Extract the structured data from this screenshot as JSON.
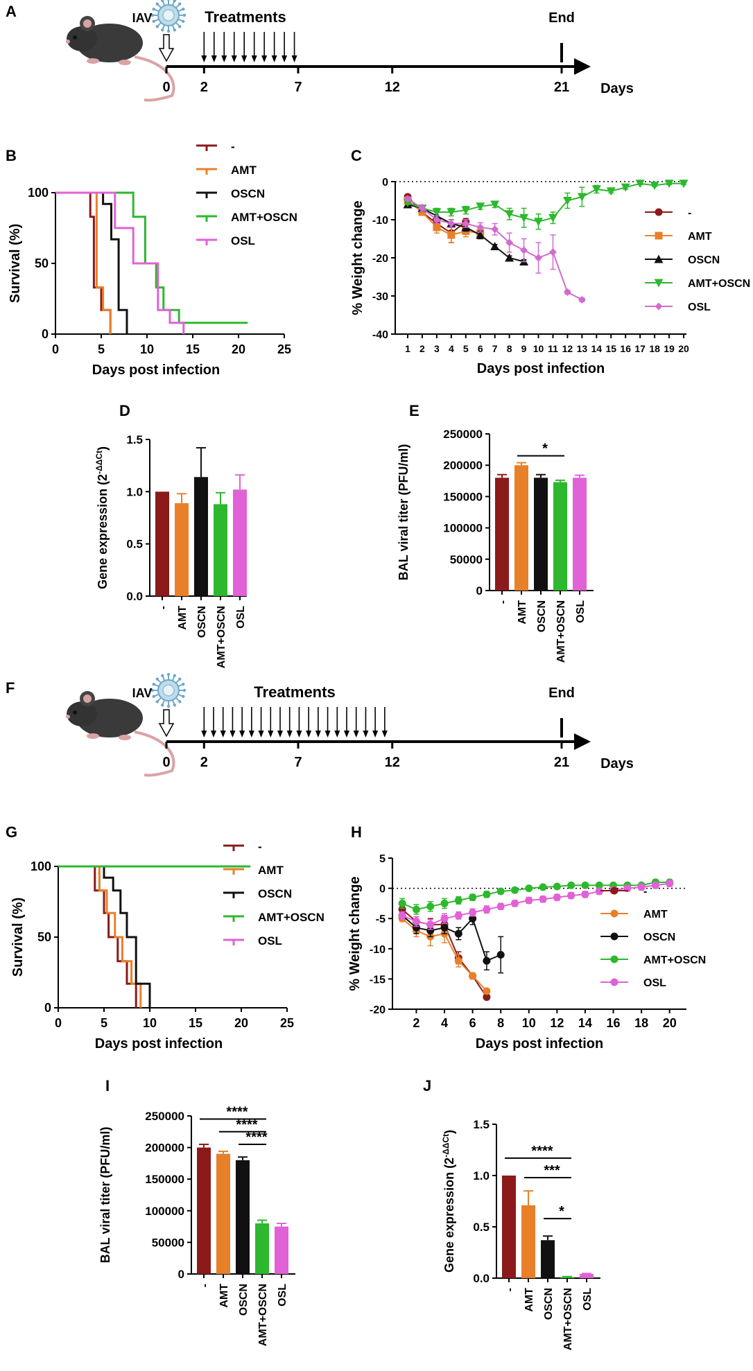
{
  "colors": {
    "untreated": "#8B1A1A",
    "amt": "#E8802A",
    "oscn": "#111111",
    "amt_oscn": "#2DB82D",
    "osl": "#E062D6",
    "osl_line": "#D36AD0"
  },
  "legend": [
    "-",
    "AMT",
    "OSCN",
    "AMT+OSCN",
    "OSL"
  ],
  "timelines": [
    {
      "panel": "A",
      "virus_label": "IAV",
      "treatments_label": "Treatments",
      "end_label": "End",
      "axis_label": "Days",
      "ticks": [
        "0",
        "2",
        "7",
        "12",
        "21"
      ],
      "tick_days": [
        0,
        2,
        7,
        12,
        21
      ],
      "arrow_count": 10,
      "arrow_span_days": [
        2,
        6.8
      ]
    },
    {
      "panel": "F",
      "virus_label": "IAV",
      "treatments_label": "Treatments",
      "end_label": "End",
      "axis_label": "Days",
      "ticks": [
        "0",
        "2",
        "7",
        "12",
        "21"
      ],
      "tick_days": [
        0,
        2,
        7,
        12,
        21
      ],
      "arrow_count": 20,
      "arrow_span_days": [
        2,
        11.6
      ]
    }
  ],
  "chart_data": [
    {
      "panel": "B",
      "type": "line",
      "title": "",
      "xlabel": "Days post infection",
      "ylabel": "Survival (%)",
      "xlim": [
        0,
        25
      ],
      "ylim": [
        0,
        100
      ],
      "xticks": [
        "0",
        "5",
        "10",
        "15",
        "20",
        "25"
      ],
      "yticks": [
        "0",
        "50",
        "100"
      ],
      "series": [
        {
          "name": "-",
          "steps": [
            [
              0,
              100
            ],
            [
              3.8,
              100
            ],
            [
              3.8,
              83
            ],
            [
              4.2,
              83
            ],
            [
              4.2,
              33
            ],
            [
              5,
              33
            ],
            [
              5,
              17
            ],
            [
              6,
              17
            ],
            [
              6,
              0
            ]
          ]
        },
        {
          "name": "AMT",
          "steps": [
            [
              0,
              100
            ],
            [
              4.5,
              100
            ],
            [
              4.5,
              33
            ],
            [
              5.2,
              33
            ],
            [
              5.2,
              17
            ],
            [
              6,
              17
            ],
            [
              6,
              0
            ]
          ]
        },
        {
          "name": "OSCN",
          "steps": [
            [
              0,
              100
            ],
            [
              5.2,
              100
            ],
            [
              5.2,
              92
            ],
            [
              6.1,
              92
            ],
            [
              6.1,
              67
            ],
            [
              6.9,
              67
            ],
            [
              6.9,
              17
            ],
            [
              7.8,
              17
            ],
            [
              7.8,
              0
            ]
          ]
        },
        {
          "name": "AMT+OSCN",
          "steps": [
            [
              0,
              100
            ],
            [
              8.5,
              100
            ],
            [
              8.5,
              83
            ],
            [
              9.8,
              83
            ],
            [
              9.8,
              50
            ],
            [
              11,
              50
            ],
            [
              11,
              33
            ],
            [
              11.8,
              33
            ],
            [
              11.8,
              17
            ],
            [
              13.5,
              17
            ],
            [
              13.5,
              8
            ],
            [
              21,
              8
            ]
          ]
        },
        {
          "name": "OSL",
          "steps": [
            [
              0,
              100
            ],
            [
              6.5,
              100
            ],
            [
              6.5,
              75
            ],
            [
              8.5,
              75
            ],
            [
              8.5,
              50
            ],
            [
              11.2,
              50
            ],
            [
              11.2,
              17
            ],
            [
              12.5,
              17
            ],
            [
              12.5,
              8
            ],
            [
              14,
              8
            ],
            [
              14,
              0
            ]
          ]
        }
      ]
    },
    {
      "panel": "C",
      "type": "line",
      "title": "",
      "xlabel": "Days post infection",
      "ylabel": "% Weight change",
      "xlim": [
        1,
        20
      ],
      "ylim": [
        -40,
        0
      ],
      "xticks": [
        "1",
        "2",
        "3",
        "4",
        "5",
        "6",
        "7",
        "8",
        "9",
        "10",
        "11",
        "12",
        "13",
        "14",
        "15",
        "16",
        "17",
        "18",
        "19",
        "20"
      ],
      "yticks": [
        "0",
        "-10",
        "-20",
        "-30",
        "-40"
      ],
      "series": [
        {
          "name": "-",
          "x": [
            1,
            2,
            3,
            4,
            5
          ],
          "y": [
            -4,
            -8,
            -11,
            -13.5,
            -10.5
          ],
          "err": [
            0.5,
            0.8,
            1.2,
            2.5,
            0.8
          ]
        },
        {
          "name": "AMT",
          "x": [
            1,
            2,
            3,
            4,
            5,
            6
          ],
          "y": [
            -5,
            -8,
            -12,
            -14,
            -13,
            -13.5
          ],
          "err": [
            0.5,
            0.8,
            1.5,
            2,
            1.5,
            1
          ]
        },
        {
          "name": "OSCN",
          "x": [
            1,
            2,
            3,
            4,
            5,
            6,
            7,
            8,
            9
          ],
          "y": [
            -6,
            -7,
            -9,
            -11,
            -12,
            -14,
            -17,
            -20,
            -21
          ],
          "err": [
            0.5,
            0.8,
            1,
            1,
            1,
            1,
            0.5,
            0.5,
            0.5
          ]
        },
        {
          "name": "AMT+OSCN",
          "x": [
            1,
            2,
            3,
            4,
            5,
            6,
            7,
            8,
            9,
            10,
            11,
            12,
            13,
            14,
            15,
            16,
            17,
            18,
            19,
            20
          ],
          "y": [
            -5.5,
            -7,
            -8,
            -8,
            -7.5,
            -6.5,
            -6,
            -8.5,
            -9.5,
            -10.5,
            -9.5,
            -5,
            -4,
            -2,
            -2.5,
            -1.5,
            -0.5,
            -1,
            -0.5,
            -0.5
          ],
          "err": [
            0.5,
            0.8,
            1,
            1,
            1,
            0.8,
            0.8,
            1.5,
            2.5,
            2,
            1.5,
            2,
            2.5,
            1,
            0.5,
            0.5,
            0.3,
            0.3,
            0.3,
            0.3
          ]
        },
        {
          "name": "OSL",
          "x": [
            1,
            2,
            3,
            4,
            5,
            6,
            7,
            8,
            9,
            10,
            11,
            12,
            13
          ],
          "y": [
            -4.5,
            -7,
            -10,
            -11,
            -11,
            -12,
            -12.5,
            -16,
            -18,
            -20,
            -18.5,
            -29,
            -31
          ],
          "err": [
            0.5,
            0.8,
            1,
            1,
            1,
            1.2,
            1.5,
            2.5,
            3,
            4,
            4.5,
            0.5,
            0.5
          ]
        }
      ]
    },
    {
      "panel": "D",
      "type": "bar",
      "title": "",
      "xlabel": "",
      "ylabel": "Gene expression (2",
      "ylabel_sup": "-ΔΔCt",
      "ylim": [
        0,
        1.5
      ],
      "yticks": [
        "0.0",
        "0.5",
        "1.0",
        "1.5"
      ],
      "categories": [
        "-",
        "AMT",
        "OSCN",
        "AMT+OSCN",
        "OSL"
      ],
      "values": [
        1.0,
        0.89,
        1.14,
        0.88,
        1.02
      ],
      "err": [
        0,
        0.09,
        0.28,
        0.11,
        0.14
      ],
      "annotations": []
    },
    {
      "panel": "E",
      "type": "bar",
      "title": "",
      "xlabel": "",
      "ylabel": "BAL viral titer (PFU/ml)",
      "ylim": [
        0,
        250000
      ],
      "yticks": [
        "0",
        "50000",
        "100000",
        "150000",
        "200000",
        "250000"
      ],
      "categories": [
        "-",
        "AMT",
        "OSCN",
        "AMT+OSCN",
        "OSL"
      ],
      "values": [
        180000,
        200000,
        180000,
        173000,
        180000
      ],
      "err": [
        5000,
        4000,
        5000,
        3000,
        4000
      ],
      "annotations": [
        {
          "from": 1,
          "to": 3,
          "label": "*",
          "y": 215000
        }
      ]
    },
    {
      "panel": "G",
      "type": "line",
      "title": "",
      "xlabel": "Days post infection",
      "ylabel": "Survival (%)",
      "xlim": [
        0,
        25
      ],
      "ylim": [
        0,
        100
      ],
      "xticks": [
        "0",
        "5",
        "10",
        "15",
        "20",
        "25"
      ],
      "yticks": [
        "0",
        "50",
        "100"
      ],
      "series": [
        {
          "name": "-",
          "steps": [
            [
              0,
              100
            ],
            [
              4,
              100
            ],
            [
              4,
              83
            ],
            [
              5,
              83
            ],
            [
              5,
              67
            ],
            [
              5.5,
              67
            ],
            [
              5.5,
              50
            ],
            [
              6.5,
              50
            ],
            [
              6.5,
              33
            ],
            [
              7.5,
              33
            ],
            [
              7.5,
              17
            ],
            [
              8.5,
              17
            ],
            [
              8.5,
              0
            ]
          ]
        },
        {
          "name": "AMT",
          "steps": [
            [
              0,
              100
            ],
            [
              4.5,
              100
            ],
            [
              4.5,
              83
            ],
            [
              5.3,
              83
            ],
            [
              5.3,
              67
            ],
            [
              6.2,
              67
            ],
            [
              6.2,
              50
            ],
            [
              7,
              50
            ],
            [
              7,
              33
            ],
            [
              8,
              33
            ],
            [
              8,
              17
            ],
            [
              9,
              17
            ],
            [
              9,
              0
            ]
          ]
        },
        {
          "name": "OSCN",
          "steps": [
            [
              0,
              100
            ],
            [
              5,
              100
            ],
            [
              5,
              92
            ],
            [
              6,
              92
            ],
            [
              6,
              83
            ],
            [
              6.8,
              83
            ],
            [
              6.8,
              67
            ],
            [
              7.5,
              67
            ],
            [
              7.5,
              50
            ],
            [
              8.5,
              50
            ],
            [
              8.5,
              17
            ],
            [
              10,
              17
            ],
            [
              10,
              0
            ]
          ]
        },
        {
          "name": "AMT+OSCN",
          "steps": [
            [
              0,
              100
            ],
            [
              21,
              100
            ]
          ]
        }
      ]
    },
    {
      "panel": "H",
      "type": "line",
      "title": "",
      "xlabel": "Days post infection",
      "ylabel": "% Weight change",
      "xlim": [
        0.5,
        21
      ],
      "ylim": [
        -20,
        5
      ],
      "xticks": [
        "2",
        "4",
        "6",
        "8",
        "10",
        "12",
        "14",
        "16",
        "18",
        "20"
      ],
      "yticks": [
        "5",
        "0",
        "-5",
        "-10",
        "-15",
        "-20"
      ],
      "series": [
        {
          "name": "-",
          "x": [
            1,
            2,
            3,
            4,
            5,
            6,
            7
          ],
          "y": [
            -3.5,
            -5.5,
            -6,
            -6,
            -11.5,
            -14.5,
            -18
          ],
          "err": [
            0.5,
            0.8,
            1,
            1.5,
            1,
            0.5,
            0.3
          ]
        },
        {
          "name": "AMT",
          "x": [
            1,
            2,
            3,
            4,
            5,
            6,
            7
          ],
          "y": [
            -5,
            -7,
            -8,
            -7.5,
            -12,
            -14.5,
            -17
          ],
          "err": [
            0.5,
            1,
            1.5,
            1.5,
            1,
            0.5,
            0.3
          ]
        },
        {
          "name": "OSCN",
          "x": [
            1,
            2,
            3,
            4,
            5,
            6,
            7,
            8
          ],
          "y": [
            -4.5,
            -6.5,
            -7,
            -6.5,
            -7.5,
            -5,
            -12,
            -11
          ],
          "err": [
            0.5,
            1,
            1,
            1,
            1,
            1,
            1.5,
            3
          ]
        },
        {
          "name": "AMT+OSCN",
          "x": [
            1,
            2,
            3,
            4,
            5,
            6,
            7,
            8,
            9,
            10,
            11,
            12,
            13,
            14,
            15,
            16,
            17,
            18,
            19,
            20
          ],
          "y": [
            -2.5,
            -3.5,
            -3,
            -2.5,
            -2,
            -1.5,
            -1,
            -0.5,
            -0.3,
            0,
            0.2,
            0.3,
            0.5,
            0.5,
            0.5,
            0.5,
            0.5,
            0.5,
            1,
            1
          ],
          "err": [
            0.8,
            0.8,
            0.8,
            0.8,
            0.6,
            0.5,
            0.5,
            0.4,
            0.4,
            0.3,
            0.3,
            0.3,
            0.3,
            0.3,
            0.3,
            0.3,
            0.3,
            0.3,
            0.4,
            0.4
          ]
        },
        {
          "name": "OSL",
          "x": [
            1,
            2,
            3,
            4,
            5,
            6,
            7,
            8,
            9,
            10,
            11,
            12,
            13,
            14,
            15,
            16,
            17,
            18,
            19,
            20
          ],
          "y": [
            -4.5,
            -5.5,
            -6,
            -5,
            -4.5,
            -4,
            -3.5,
            -3,
            -2.5,
            -2,
            -1.8,
            -1.5,
            -1.2,
            -1,
            -0.5,
            -0.3,
            0,
            0.2,
            0.5,
            0.8
          ],
          "err": [
            0.6,
            0.8,
            0.8,
            0.8,
            0.6,
            0.6,
            0.6,
            0.5,
            0.5,
            0.5,
            0.5,
            0.5,
            0.5,
            0.5,
            0.5,
            0.5,
            0.5,
            0.5,
            0.5,
            0.5
          ]
        }
      ]
    },
    {
      "panel": "I",
      "type": "bar",
      "title": "",
      "xlabel": "",
      "ylabel": "BAL viral titer (PFU/ml)",
      "ylim": [
        0,
        250000
      ],
      "yticks": [
        "0",
        "50000",
        "100000",
        "150000",
        "200000",
        "250000"
      ],
      "categories": [
        "-",
        "AMT",
        "OSCN",
        "AMT+OSCN",
        "OSL"
      ],
      "values": [
        200000,
        190000,
        180000,
        80000,
        75000
      ],
      "err": [
        5000,
        4000,
        5000,
        5000,
        5000
      ],
      "annotations": [
        {
          "from": 0,
          "to": 3,
          "label": "****",
          "y": 245000
        },
        {
          "from": 1,
          "to": 3,
          "label": "****",
          "y": 225000
        },
        {
          "from": 2,
          "to": 3,
          "label": "****",
          "y": 205000
        }
      ]
    },
    {
      "panel": "J",
      "type": "bar",
      "title": "",
      "xlabel": "",
      "ylabel": "Gene expression (2",
      "ylabel_sup": "-ΔΔCt",
      "ylim": [
        0,
        1.5
      ],
      "yticks": [
        "0.0",
        "0.5",
        "1.0",
        "1.5"
      ],
      "categories": [
        "-",
        "AMT",
        "OSCN",
        "AMT+OSCN",
        "OSL"
      ],
      "values": [
        1.0,
        0.71,
        0.37,
        0.01,
        0.04
      ],
      "err": [
        0,
        0.14,
        0.04,
        0.005,
        0.005
      ],
      "annotations": [
        {
          "from": 0,
          "to": 3,
          "label": "****",
          "y": 1.17
        },
        {
          "from": 1,
          "to": 3,
          "label": "***",
          "y": 0.98
        },
        {
          "from": 2,
          "to": 3,
          "label": "*",
          "y": 0.58
        }
      ]
    }
  ]
}
